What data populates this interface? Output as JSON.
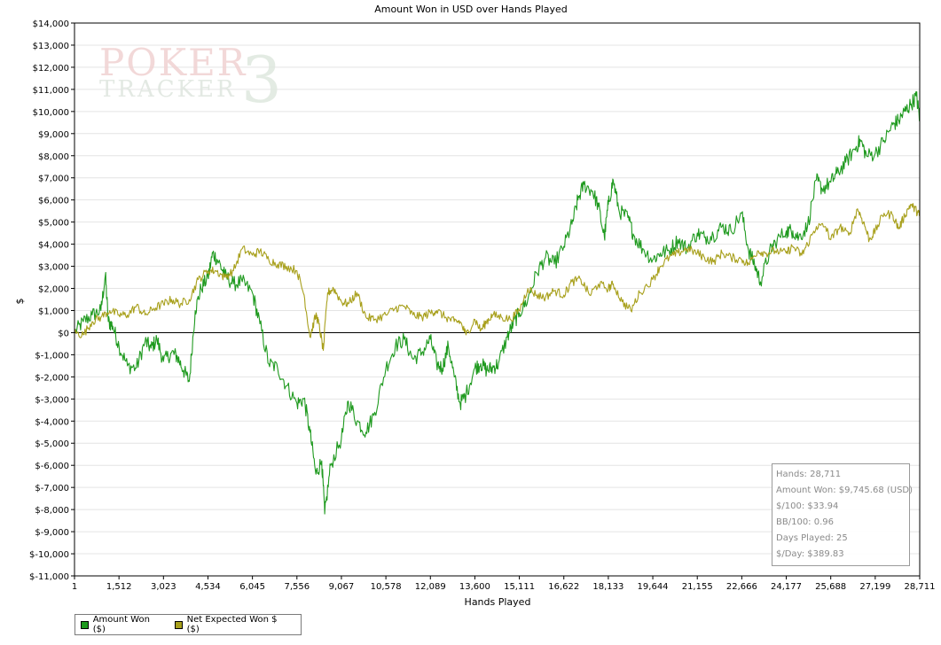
{
  "chart_data": {
    "type": "line",
    "title": "Amount Won in USD over Hands Played",
    "xlabel": "Hands Played",
    "ylabel": "$",
    "xlim": [
      1,
      28711
    ],
    "ylim": [
      -11000,
      14000
    ],
    "x_ticks": [
      "1",
      "1,512",
      "3,023",
      "4,534",
      "6,045",
      "7,556",
      "9,067",
      "10,578",
      "12,089",
      "13,600",
      "15,111",
      "16,622",
      "18,133",
      "19,644",
      "21,155",
      "22,666",
      "24,177",
      "25,688",
      "27,199",
      "28,711"
    ],
    "y_ticks": [
      14000,
      13000,
      12000,
      11000,
      10000,
      9000,
      8000,
      7000,
      6000,
      5000,
      4000,
      3000,
      2000,
      1000,
      0,
      -1000,
      -2000,
      -3000,
      -4000,
      -5000,
      -6000,
      -7000,
      -8000,
      -9000,
      -10000,
      -11000
    ],
    "y_tick_labels": [
      "$14,000",
      "$13,000",
      "$12,000",
      "$11,000",
      "$10,000",
      "$9,000",
      "$8,000",
      "$7,000",
      "$6,000",
      "$5,000",
      "$4,000",
      "$3,000",
      "$2,000",
      "$1,000",
      "$0",
      "$-1,000",
      "$-2,000",
      "$-3,000",
      "$-4,000",
      "$-5,000",
      "$-6,000",
      "$-7,000",
      "$-8,000",
      "$-9,000",
      "$-10,000",
      "$-11,000"
    ],
    "grid": "horizontal",
    "legend_position": "bottom-left",
    "series": [
      {
        "name": "Amount Won ($)",
        "color": "#1f9a1f",
        "points": [
          [
            1,
            0
          ],
          [
            300,
            500
          ],
          [
            600,
            800
          ],
          [
            900,
            1000
          ],
          [
            1050,
            2600
          ],
          [
            1150,
            500
          ],
          [
            1300,
            300
          ],
          [
            1512,
            -600
          ],
          [
            1800,
            -1500
          ],
          [
            2100,
            -1600
          ],
          [
            2400,
            -400
          ],
          [
            2600,
            -700
          ],
          [
            2800,
            -300
          ],
          [
            3023,
            -1300
          ],
          [
            3300,
            -900
          ],
          [
            3500,
            -1100
          ],
          [
            3700,
            -1700
          ],
          [
            3900,
            -2200
          ],
          [
            4100,
            1000
          ],
          [
            4300,
            2000
          ],
          [
            4534,
            2500
          ],
          [
            4700,
            3600
          ],
          [
            4900,
            3200
          ],
          [
            5100,
            2600
          ],
          [
            5400,
            2200
          ],
          [
            5700,
            2300
          ],
          [
            6045,
            1800
          ],
          [
            6300,
            400
          ],
          [
            6600,
            -1400
          ],
          [
            6900,
            -1600
          ],
          [
            7200,
            -2400
          ],
          [
            7556,
            -3200
          ],
          [
            7800,
            -3000
          ],
          [
            8000,
            -4500
          ],
          [
            8200,
            -6400
          ],
          [
            8400,
            -5800
          ],
          [
            8500,
            -8200
          ],
          [
            8700,
            -6000
          ],
          [
            9067,
            -4800
          ],
          [
            9300,
            -3100
          ],
          [
            9600,
            -4000
          ],
          [
            9900,
            -4500
          ],
          [
            10200,
            -3600
          ],
          [
            10578,
            -1600
          ],
          [
            10900,
            -600
          ],
          [
            11200,
            -300
          ],
          [
            11500,
            -1200
          ],
          [
            11800,
            -900
          ],
          [
            12089,
            -300
          ],
          [
            12300,
            -1400
          ],
          [
            12500,
            -1600
          ],
          [
            12700,
            -600
          ],
          [
            12900,
            -2000
          ],
          [
            13100,
            -3200
          ],
          [
            13300,
            -2800
          ],
          [
            13600,
            -1600
          ],
          [
            13800,
            -1400
          ],
          [
            14000,
            -1700
          ],
          [
            14200,
            -1600
          ],
          [
            14400,
            -1400
          ],
          [
            14700,
            -200
          ],
          [
            14900,
            400
          ],
          [
            15111,
            900
          ],
          [
            15400,
            1500
          ],
          [
            15700,
            2700
          ],
          [
            16000,
            3400
          ],
          [
            16300,
            3100
          ],
          [
            16622,
            3900
          ],
          [
            16900,
            4900
          ],
          [
            17100,
            6000
          ],
          [
            17300,
            6700
          ],
          [
            17600,
            6400
          ],
          [
            17800,
            5700
          ],
          [
            18000,
            4300
          ],
          [
            18133,
            5800
          ],
          [
            18300,
            6900
          ],
          [
            18500,
            5500
          ],
          [
            18800,
            5200
          ],
          [
            19000,
            4400
          ],
          [
            19300,
            3800
          ],
          [
            19644,
            3300
          ],
          [
            19900,
            3600
          ],
          [
            20200,
            3700
          ],
          [
            20500,
            4200
          ],
          [
            20800,
            3800
          ],
          [
            21155,
            4500
          ],
          [
            21400,
            4300
          ],
          [
            21700,
            4400
          ],
          [
            22000,
            4800
          ],
          [
            22300,
            4600
          ],
          [
            22666,
            5400
          ],
          [
            22900,
            3700
          ],
          [
            23100,
            3100
          ],
          [
            23300,
            2300
          ],
          [
            23600,
            3600
          ],
          [
            23800,
            4100
          ],
          [
            24177,
            4600
          ],
          [
            24400,
            4600
          ],
          [
            24600,
            4300
          ],
          [
            24900,
            4800
          ],
          [
            25200,
            6900
          ],
          [
            25400,
            6500
          ],
          [
            25688,
            6800
          ],
          [
            25900,
            7200
          ],
          [
            26200,
            7700
          ],
          [
            26500,
            8300
          ],
          [
            26700,
            8700
          ],
          [
            26900,
            8000
          ],
          [
            27199,
            8100
          ],
          [
            27500,
            8700
          ],
          [
            27800,
            9400
          ],
          [
            28000,
            9600
          ],
          [
            28200,
            10000
          ],
          [
            28400,
            10300
          ],
          [
            28600,
            10700
          ],
          [
            28711,
            9700
          ]
        ]
      },
      {
        "name": "Net Expected Won $ ($)",
        "color": "#a8a01c",
        "points": [
          [
            1,
            0
          ],
          [
            300,
            -100
          ],
          [
            600,
            500
          ],
          [
            900,
            700
          ],
          [
            1200,
            1000
          ],
          [
            1512,
            800
          ],
          [
            1800,
            800
          ],
          [
            2100,
            1200
          ],
          [
            2400,
            800
          ],
          [
            2700,
            1100
          ],
          [
            3023,
            1300
          ],
          [
            3300,
            1500
          ],
          [
            3600,
            1300
          ],
          [
            3900,
            1500
          ],
          [
            4200,
            2400
          ],
          [
            4534,
            2800
          ],
          [
            4800,
            2800
          ],
          [
            5100,
            2500
          ],
          [
            5400,
            2800
          ],
          [
            5700,
            3800
          ],
          [
            6045,
            3500
          ],
          [
            6300,
            3700
          ],
          [
            6600,
            3300
          ],
          [
            6900,
            3100
          ],
          [
            7200,
            3000
          ],
          [
            7556,
            2800
          ],
          [
            7800,
            1700
          ],
          [
            8000,
            -200
          ],
          [
            8200,
            800
          ],
          [
            8300,
            400
          ],
          [
            8450,
            -800
          ],
          [
            8600,
            1800
          ],
          [
            8800,
            2000
          ],
          [
            9067,
            1400
          ],
          [
            9300,
            1300
          ],
          [
            9600,
            1800
          ],
          [
            9900,
            700
          ],
          [
            10200,
            600
          ],
          [
            10578,
            800
          ],
          [
            10900,
            1100
          ],
          [
            11200,
            1200
          ],
          [
            11500,
            800
          ],
          [
            11800,
            700
          ],
          [
            12089,
            900
          ],
          [
            12300,
            1000
          ],
          [
            12600,
            700
          ],
          [
            12900,
            500
          ],
          [
            13100,
            500
          ],
          [
            13300,
            -100
          ],
          [
            13600,
            600
          ],
          [
            13800,
            100
          ],
          [
            14000,
            500
          ],
          [
            14200,
            800
          ],
          [
            14500,
            700
          ],
          [
            14800,
            600
          ],
          [
            15111,
            1000
          ],
          [
            15400,
            2000
          ],
          [
            15700,
            1700
          ],
          [
            16000,
            1600
          ],
          [
            16300,
            1900
          ],
          [
            16622,
            1700
          ],
          [
            16900,
            2300
          ],
          [
            17200,
            2400
          ],
          [
            17500,
            1700
          ],
          [
            17800,
            2200
          ],
          [
            18133,
            2000
          ],
          [
            18300,
            2200
          ],
          [
            18600,
            1400
          ],
          [
            18900,
            1000
          ],
          [
            19200,
            1800
          ],
          [
            19644,
            2400
          ],
          [
            19900,
            3000
          ],
          [
            20200,
            3400
          ],
          [
            20500,
            3600
          ],
          [
            20800,
            3800
          ],
          [
            21155,
            3600
          ],
          [
            21400,
            3400
          ],
          [
            21700,
            3200
          ],
          [
            22000,
            3600
          ],
          [
            22300,
            3400
          ],
          [
            22666,
            3300
          ],
          [
            22900,
            3100
          ],
          [
            23200,
            3700
          ],
          [
            23500,
            3600
          ],
          [
            23800,
            3700
          ],
          [
            24177,
            3600
          ],
          [
            24400,
            3900
          ],
          [
            24700,
            3500
          ],
          [
            24900,
            4000
          ],
          [
            25200,
            4800
          ],
          [
            25500,
            4800
          ],
          [
            25688,
            4200
          ],
          [
            26000,
            4800
          ],
          [
            26300,
            4400
          ],
          [
            26600,
            5600
          ],
          [
            26800,
            5000
          ],
          [
            27000,
            4200
          ],
          [
            27199,
            4600
          ],
          [
            27500,
            5400
          ],
          [
            27800,
            5300
          ],
          [
            28000,
            4700
          ],
          [
            28200,
            5300
          ],
          [
            28400,
            5800
          ],
          [
            28600,
            5500
          ],
          [
            28711,
            5300
          ]
        ]
      }
    ]
  },
  "stats": {
    "rows": [
      "Hands: 28,711",
      "Amount Won: $9,745.68 (USD)",
      "$/100: $33.94",
      "BB/100: 0.96",
      "Days Played: 25",
      "$/Day: $389.83"
    ]
  },
  "logo": {
    "line1": "POKER",
    "line2": "TRACKER",
    "digit": "3"
  }
}
